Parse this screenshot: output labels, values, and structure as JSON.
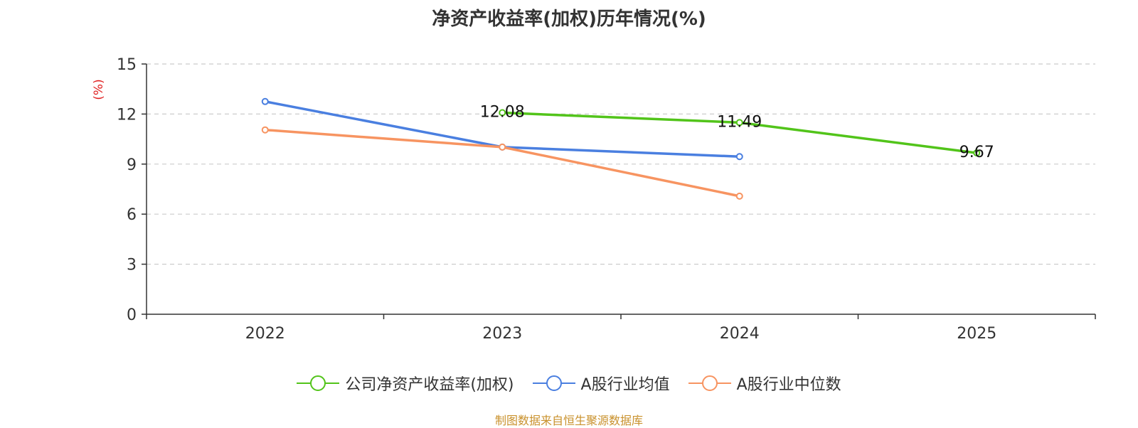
{
  "chart_data": {
    "type": "line",
    "title": "净资产收益率(加权)历年情况(%)",
    "ylabel": "(%)",
    "xlabel": "",
    "categories": [
      "2022",
      "2023",
      "2024",
      "2025"
    ],
    "ylim": [
      0,
      15
    ],
    "yticks": [
      0,
      3,
      6,
      9,
      12,
      15
    ],
    "grid": true,
    "legend_position": "bottom",
    "series": [
      {
        "name": "公司净资产收益率(加权)",
        "color": "#52c41a",
        "values": [
          null,
          12.08,
          11.49,
          9.67
        ],
        "labels": [
          "",
          "12.08",
          "11.49",
          "9.67"
        ]
      },
      {
        "name": "A股行业均值",
        "color": "#4a7fe0",
        "values": [
          12.75,
          10.02,
          9.45,
          null
        ]
      },
      {
        "name": "A股行业中位数",
        "color": "#f79461",
        "values": [
          11.05,
          10.02,
          7.08,
          null
        ]
      }
    ]
  },
  "footer": {
    "source": "制图数据来自恒生聚源数据库"
  }
}
